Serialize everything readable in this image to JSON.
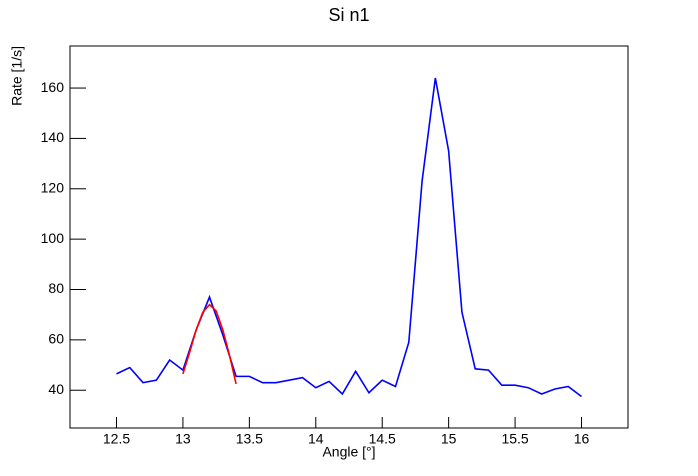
{
  "chart_data": {
    "type": "line",
    "title": "Si n1",
    "x_label": "Angle [°]",
    "y_label": "Rate [1/s]",
    "xlim": [
      12.15,
      16.35
    ],
    "ylim": [
      25,
      176.7
    ],
    "xticks": [
      12.5,
      13,
      13.5,
      14,
      14.5,
      15,
      15.5,
      16
    ],
    "yticks": [
      40,
      60,
      80,
      100,
      120,
      140,
      160
    ],
    "series": [
      {
        "color": "#0000ff",
        "x": [
          12.5,
          12.6,
          12.7,
          12.8,
          12.9,
          13,
          13.1,
          13.2,
          13.3,
          13.4,
          13.5,
          13.6,
          13.7,
          13.8,
          13.9,
          14,
          14.1,
          14.2,
          14.3,
          14.4,
          14.5,
          14.6,
          14.7,
          14.8,
          14.9,
          15,
          15.1,
          15.2,
          15.3,
          15.4,
          15.5,
          15.6,
          15.7,
          15.8,
          15.9,
          16
        ],
        "values": [
          46.5,
          49,
          43,
          44,
          52,
          48,
          64,
          77,
          62,
          45.5,
          45.5,
          43,
          43,
          44,
          45,
          41,
          43.5,
          38.5,
          47.5,
          39,
          44,
          41.5,
          59,
          123,
          164,
          135,
          71,
          48.5,
          48,
          42,
          42,
          41,
          38.5,
          40.5,
          41.5,
          37.5
        ]
      },
      {
        "color": "#ff0000",
        "x": [
          13,
          13.05,
          13.1,
          13.15,
          13.2,
          13.25,
          13.3,
          13.35,
          13.4
        ],
        "values": [
          46.5,
          55,
          64,
          71,
          74,
          71.5,
          64,
          54,
          42.5
        ]
      }
    ]
  }
}
